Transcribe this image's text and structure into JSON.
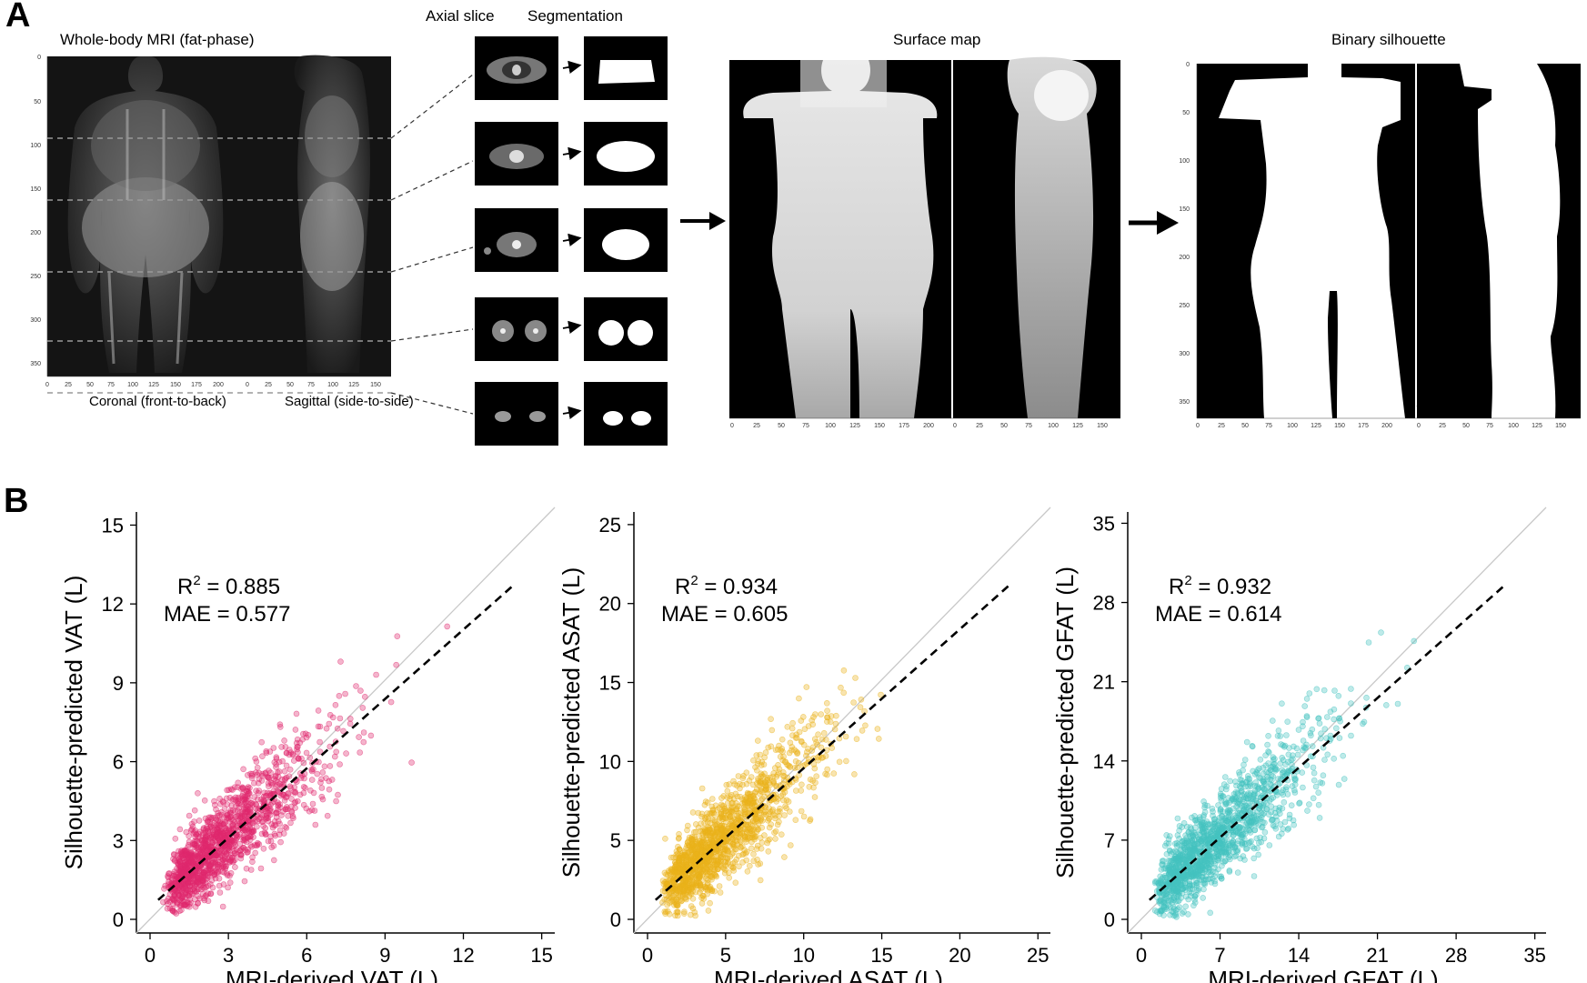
{
  "panelA": {
    "letter": "A",
    "mri_title": "Whole-body MRI (fat-phase)",
    "axial_title": "Axial slice",
    "seg_title": "Segmentation",
    "surface_title": "Surface map",
    "silhouette_title": "Binary silhouette",
    "coronal_label": "Coronal (front-to-back)",
    "sagittal_label": "Sagittal (side-to-side)",
    "y_ticks": [
      "0",
      "50",
      "100",
      "150",
      "200",
      "250",
      "300",
      "350"
    ],
    "coronal_x_ticks": [
      "0",
      "25",
      "50",
      "75",
      "100",
      "125",
      "150",
      "175",
      "200"
    ],
    "sagittal_x_ticks": [
      "0",
      "25",
      "50",
      "75",
      "100",
      "125",
      "150"
    ]
  },
  "panelB": {
    "letter": "B",
    "colors": {
      "vat": "#e0286e",
      "asat": "#eab21a",
      "gfat": "#45c3c0"
    },
    "plots": [
      {
        "key": "vat",
        "ylabel": "Silhouette-predicted VAT (L)",
        "xlabel": "MRI-derived VAT (L)",
        "r2_prefix": "R",
        "r2_sup": "2",
        "r2_value": " = 0.885",
        "mae": "MAE = 0.577",
        "ticks": [
          "0",
          "3",
          "6",
          "9",
          "12",
          "15"
        ],
        "max": 15.5
      },
      {
        "key": "asat",
        "ylabel": "Silhouette-predicted ASAT (L)",
        "xlabel": "MRI-derived ASAT (L)",
        "r2_prefix": "R",
        "r2_sup": "2",
        "r2_value": " = 0.934",
        "mae": "MAE = 0.605",
        "ticks": [
          "0",
          "5",
          "10",
          "15",
          "20",
          "25"
        ],
        "max": 25.8
      },
      {
        "key": "gfat",
        "ylabel": "Silhouette-predicted GFAT (L)",
        "xlabel": "MRI-derived GFAT (L)",
        "r2_prefix": "R",
        "r2_sup": "2",
        "r2_value": " = 0.932",
        "mae": "MAE = 0.614",
        "ticks": [
          "0",
          "7",
          "14",
          "21",
          "28",
          "35"
        ],
        "max": 36
      }
    ]
  }
}
